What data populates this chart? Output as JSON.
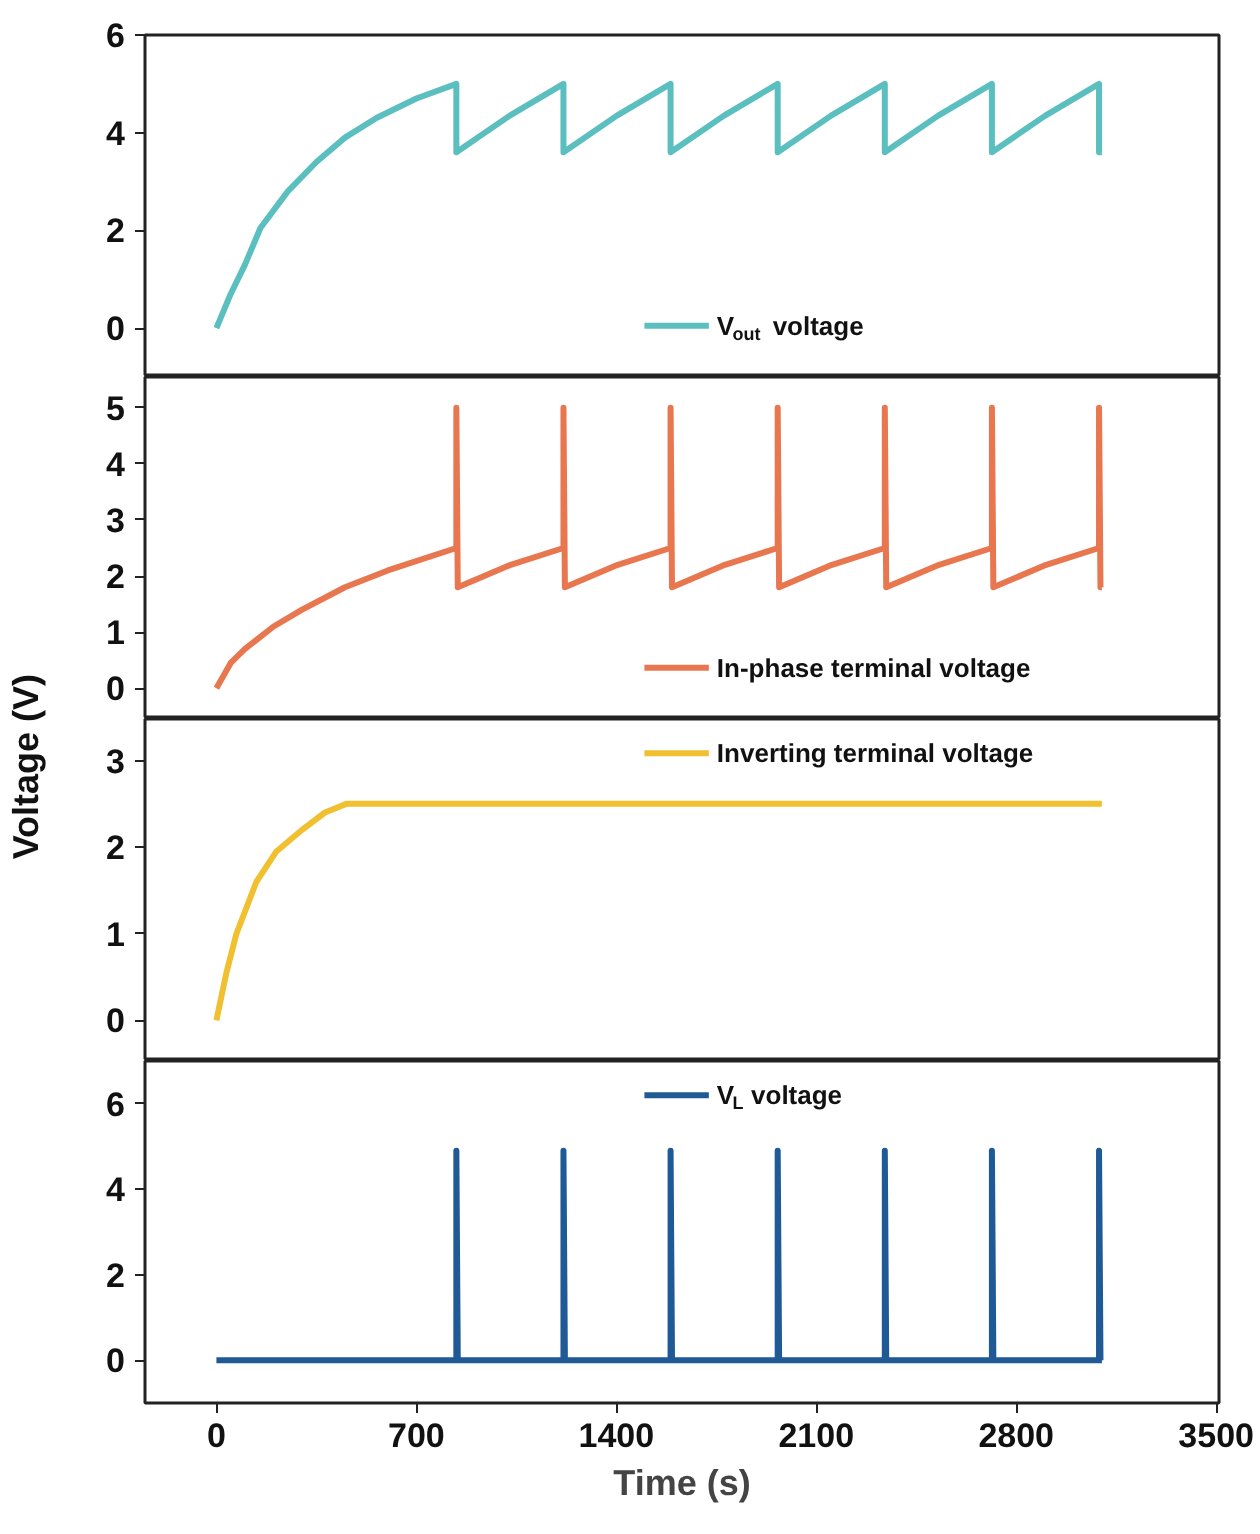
{
  "chart_data": [
    {
      "type": "line",
      "xlim": [
        -250,
        3510
      ],
      "ylim": [
        -1,
        6
      ],
      "yticks": [
        0,
        2,
        4,
        6
      ],
      "tick_labels": "y",
      "legend": "bottom",
      "grid": false,
      "series": [
        {
          "name": "V$_{out}$ voltage",
          "color": "#5bbfc0",
          "x": [
            0,
            50,
            100,
            154,
            250,
            350,
            450,
            560,
            700,
            840,
            840,
            1027,
            1215,
            1215,
            1402,
            1590,
            1590,
            1777,
            1965,
            1965,
            2152,
            2340,
            2340,
            2527,
            2715,
            2715,
            2902,
            3090,
            3090,
            3100
          ],
          "values": [
            0,
            0.7,
            1.3,
            2.05,
            2.8,
            3.4,
            3.9,
            4.3,
            4.7,
            5,
            3.6,
            4.35,
            5,
            3.6,
            4.35,
            5,
            3.6,
            4.35,
            5,
            3.6,
            4.35,
            5,
            3.6,
            4.35,
            5,
            3.6,
            4.35,
            5,
            3.6,
            3.6
          ]
        }
      ]
    },
    {
      "type": "line",
      "xlim": [
        -250,
        3510
      ],
      "ylim": [
        -0.55,
        5.55
      ],
      "yticks": [
        0,
        1,
        2,
        3,
        4,
        5
      ],
      "tick_labels": "y",
      "legend": "bottom",
      "grid": false,
      "ylabel": "Voltage (V)",
      "series": [
        {
          "name": "In-phase terminal voltage",
          "color": "#e8774f",
          "x": [
            0,
            50,
            100,
            200,
            300,
            450,
            600,
            840,
            840,
            845,
            1030,
            1215,
            1215,
            1220,
            1405,
            1590,
            1590,
            1595,
            1780,
            1965,
            1965,
            1970,
            2155,
            2340,
            2340,
            2345,
            2530,
            2715,
            2715,
            2720,
            2905,
            3090,
            3090,
            3095,
            3100
          ],
          "values": [
            0,
            0.45,
            0.7,
            1.1,
            1.4,
            1.8,
            2.1,
            2.5,
            5,
            1.8,
            2.2,
            2.5,
            5,
            1.8,
            2.2,
            2.5,
            5,
            1.8,
            2.2,
            2.5,
            5,
            1.8,
            2.2,
            2.5,
            5,
            1.8,
            2.2,
            2.5,
            5,
            1.8,
            2.2,
            2.5,
            5,
            1.8,
            1.8
          ]
        }
      ]
    },
    {
      "type": "line",
      "xlim": [
        -250,
        3510
      ],
      "ylim": [
        -0.47,
        3.48
      ],
      "yticks": [
        0,
        1,
        2,
        3
      ],
      "tick_labels": "y",
      "legend": "top",
      "grid": false,
      "series": [
        {
          "name": "Inverting terminal voltage",
          "color": "#f0c030",
          "x": [
            0,
            35,
            70,
            140,
            210,
            300,
            380,
            455,
            3100
          ],
          "values": [
            0,
            0.55,
            1.0,
            1.6,
            1.95,
            2.2,
            2.4,
            2.5,
            2.5
          ]
        }
      ]
    },
    {
      "type": "line",
      "xlim": [
        -250,
        3510
      ],
      "ylim": [
        -1,
        7
      ],
      "yticks": [
        0,
        2,
        4,
        6
      ],
      "xticks": [
        0,
        700,
        1400,
        2100,
        2800,
        3500
      ],
      "legend": "top",
      "grid": false,
      "xlabel": "Time (s)",
      "series": [
        {
          "name": "V$_{L}$ voltage",
          "color": "#1f5a96",
          "x": [
            0,
            840,
            840,
            845,
            1215,
            1215,
            1220,
            1590,
            1590,
            1595,
            1965,
            1965,
            1970,
            2340,
            2340,
            2345,
            2715,
            2715,
            2720,
            3090,
            3090,
            3095,
            3100
          ],
          "values": [
            0,
            0,
            4.9,
            0,
            0,
            4.9,
            0,
            0,
            4.9,
            0,
            0,
            4.9,
            0,
            0,
            4.9,
            0,
            0,
            4.9,
            0,
            0,
            4.9,
            0,
            0
          ]
        }
      ]
    }
  ]
}
